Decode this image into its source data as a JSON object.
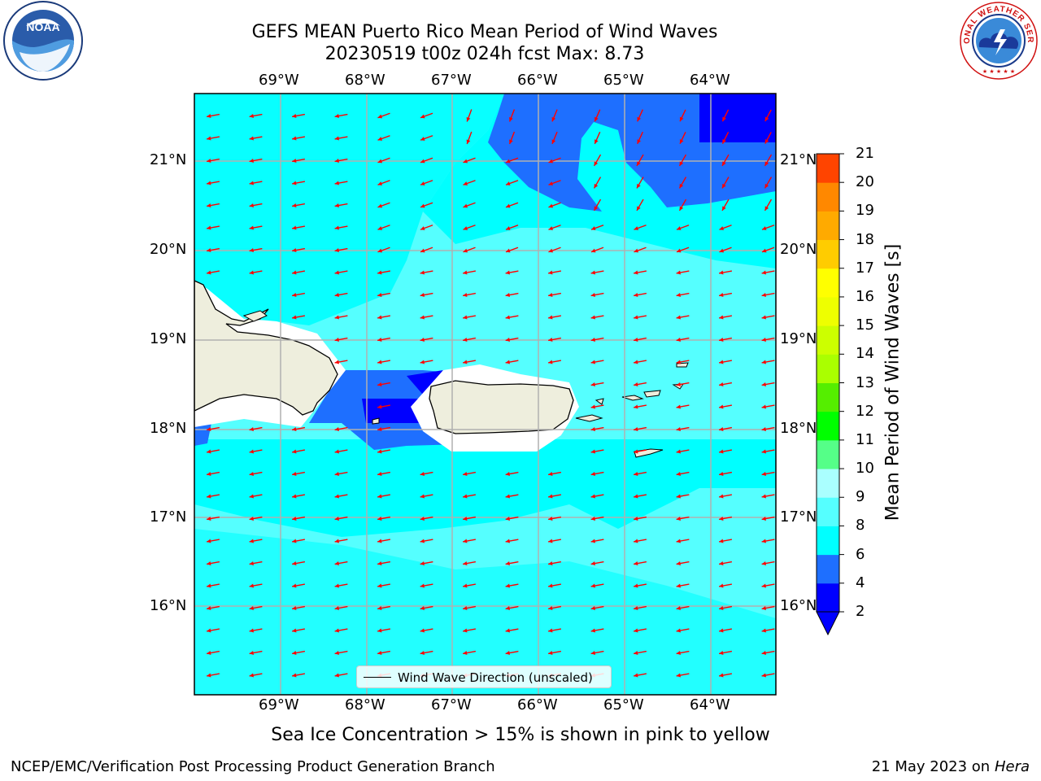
{
  "header": {
    "title_line1": "GEFS MEAN Puerto Rico Mean Period of Wind Waves",
    "title_line2": "20230519 t00z 024h fcst   Max: 8.73"
  },
  "logos": {
    "left": "noaa-logo",
    "right": "national-weather-service-logo",
    "noaa_text": "NOAA",
    "noaa_ring_text": "NATIONAL OCEANIC AND ATMOSPHERIC ADMINISTRATION · U.S. DEPARTMENT OF COMMERCE",
    "nws_ring_text": "NATIONAL WEATHER SERVICE"
  },
  "map": {
    "longitude_labels": [
      "69°W",
      "68°W",
      "67°W",
      "66°W",
      "65°W",
      "64°W"
    ],
    "latitude_labels": [
      "21°N",
      "20°N",
      "19°N",
      "18°N",
      "17°N",
      "16°N"
    ],
    "arrow_color": "#ff0000",
    "land_color": "#eeeedd",
    "gridline_color": "#b0b0b0"
  },
  "legend": {
    "label": "Wind Wave Direction (unscaled)"
  },
  "colorbar": {
    "title": "Mean Period of Wind Waves [s]",
    "levels": [
      "2",
      "4",
      "6",
      "8",
      "9",
      "10",
      "11",
      "12",
      "13",
      "14",
      "15",
      "16",
      "17",
      "18",
      "19",
      "20",
      "21"
    ],
    "colors": [
      "#0000ff",
      "#1e6fff",
      "#00ffff",
      "#55ffff",
      "#aaffff",
      "#55ff88",
      "#00ff00",
      "#55ee00",
      "#aaff00",
      "#ccff00",
      "#eeff00",
      "#ffff00",
      "#ffcc00",
      "#ffaa00",
      "#ff8800",
      "#ff4400",
      "#ff0000"
    ],
    "under_color": "#0000ff"
  },
  "footer": {
    "note": "Sea Ice Concentration > 15% is shown in pink to yellow",
    "left": "NCEP/EMC/Verification Post Processing Product Generation Branch",
    "date": "21 May 2023 on",
    "machine": "Hera"
  }
}
